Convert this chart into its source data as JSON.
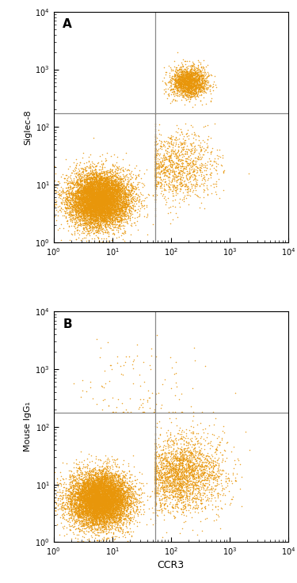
{
  "dot_color": "#E8960A",
  "background_color": "#FFFFFF",
  "grid_line_color": "#888888",
  "axis_line_color": "#000000",
  "xlim": [
    1,
    10000
  ],
  "ylim": [
    1,
    10000
  ],
  "vline_x": 55,
  "hline_y_A": 175,
  "hline_y_B": 175,
  "xlabel": "CCR3",
  "ylabel_A": "Siglec-8",
  "ylabel_B": "Mouse IgG₁",
  "label_A": "A",
  "label_B": "B",
  "dot_size": 1.2,
  "dot_alpha": 0.85,
  "seed_A": 42,
  "seed_B": 99,
  "n_main_A": 8000,
  "n_cluster_A": 1800,
  "n_scatter_A": 1200,
  "n_main_B": 8000,
  "n_scatter_B": 2500,
  "n_noise_B": 120
}
